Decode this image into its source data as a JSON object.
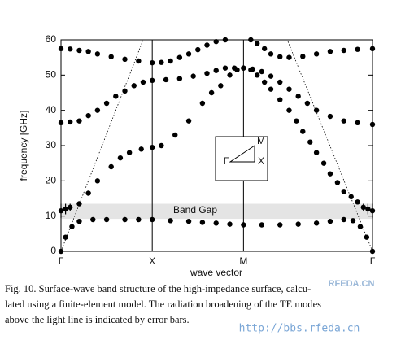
{
  "chart_data": {
    "type": "scatter",
    "ylabel": "frequency [GHz]",
    "xlabel": "wave vector",
    "xlim": [
      0,
      3.414
    ],
    "ylim": [
      0,
      60
    ],
    "xticks": [
      {
        "value": 0,
        "label": "Γ"
      },
      {
        "value": 1,
        "label": "X"
      },
      {
        "value": 2,
        "label": "M"
      },
      {
        "value": 3.414,
        "label": "Γ"
      }
    ],
    "yticks": [
      0,
      10,
      20,
      30,
      40,
      50,
      60
    ],
    "color": "#000000",
    "series": [
      {
        "x": [
          0,
          0.05,
          0.12,
          0.2,
          0.35,
          0.5,
          0.7,
          0.85,
          1.0,
          1.2,
          1.4,
          1.55,
          1.7,
          1.85,
          2.0,
          2.2,
          2.4,
          2.6,
          2.8,
          2.95,
          3.1,
          3.2,
          3.28,
          3.35,
          3.414
        ],
        "values": [
          0,
          4,
          7,
          8.5,
          9,
          9,
          9,
          9,
          9,
          8.7,
          8.5,
          8.2,
          8,
          7.7,
          7.5,
          7.5,
          7.5,
          7.7,
          8,
          8.5,
          9,
          8.7,
          7,
          4,
          0
        ]
      },
      {
        "x": [
          0,
          0.05,
          0.1,
          0.2,
          0.3,
          0.4,
          0.55,
          0.65,
          0.75,
          0.88,
          1.0,
          1.1,
          1.25,
          1.4,
          1.55,
          1.65,
          1.75,
          1.85,
          1.93,
          2.0
        ],
        "values": [
          11.5,
          12,
          12.5,
          13.5,
          16.5,
          20,
          24,
          26.5,
          28,
          29,
          29.5,
          30,
          33,
          37,
          42,
          45,
          47,
          50,
          51.5,
          52
        ],
        "errors": [
          2,
          1.5,
          1,
          null,
          null,
          null,
          null,
          null,
          null,
          null,
          null,
          null,
          null,
          null,
          null,
          null,
          null,
          null,
          null,
          null
        ]
      },
      {
        "x": [
          0,
          0.1,
          0.2,
          0.3,
          0.4,
          0.5,
          0.6,
          0.7,
          0.8,
          0.9,
          1.0,
          1.15,
          1.3,
          1.45,
          1.6,
          1.7,
          1.8,
          1.9
        ],
        "values": [
          36.5,
          36.7,
          37,
          38.5,
          40,
          42,
          44,
          45.5,
          47,
          48,
          48.5,
          48.7,
          49,
          49.7,
          50.5,
          51.3,
          52,
          52
        ]
      },
      {
        "x": [
          2.0,
          2.08,
          2.15,
          2.23,
          2.3,
          2.4,
          2.5,
          2.58,
          2.65,
          2.73,
          2.8,
          2.88,
          2.95,
          3.03,
          3.1,
          3.18,
          3.25,
          3.314,
          3.364,
          3.414
        ],
        "values": [
          52,
          51.5,
          50,
          48,
          46,
          43,
          40,
          37,
          34,
          31,
          28,
          25,
          22,
          19.5,
          17,
          15.5,
          14,
          12.5,
          12,
          11.5
        ],
        "errors": [
          null,
          null,
          null,
          null,
          null,
          null,
          null,
          null,
          null,
          null,
          null,
          null,
          null,
          null,
          null,
          null,
          null,
          1,
          1.5,
          2
        ]
      },
      {
        "x": [
          2.1,
          2.2,
          2.3,
          2.4,
          2.5,
          2.6,
          2.7,
          2.8,
          2.95,
          3.1,
          3.25,
          3.414
        ],
        "values": [
          51.7,
          51,
          49.7,
          48,
          46,
          44,
          42,
          40,
          38.3,
          37,
          36.5,
          36
        ]
      },
      {
        "x": [
          0,
          0.1,
          0.2,
          0.3,
          0.4,
          0.55,
          0.7,
          0.85,
          1.0,
          1.1,
          1.2,
          1.3,
          1.4,
          1.5,
          1.6,
          1.7,
          1.8
        ],
        "values": [
          57.5,
          57.4,
          57,
          56.7,
          56,
          55.2,
          54.5,
          54,
          53.5,
          53.6,
          54,
          55,
          56,
          57.2,
          58.5,
          59.5,
          60
        ]
      },
      {
        "x": [
          2.08,
          2.15,
          2.23,
          2.3,
          2.4,
          2.5,
          2.65,
          2.8,
          2.95,
          3.1,
          3.25,
          3.414
        ],
        "values": [
          60,
          59,
          57.5,
          56,
          55.2,
          55,
          55.3,
          56,
          56.7,
          57,
          57.3,
          57.5
        ]
      }
    ],
    "light_lines": [
      {
        "x": [
          0,
          0.9
        ],
        "values": [
          0,
          60
        ]
      },
      {
        "x": [
          3.414,
          2.48
        ],
        "values": [
          0,
          60
        ]
      }
    ],
    "band_gap": {
      "label": "Band Gap",
      "range": [
        9.2,
        13.5
      ]
    }
  },
  "inset": {
    "gamma": "Γ",
    "m": "M",
    "x": "X"
  },
  "caption": {
    "lines": [
      "Fig. 10.   Surface-wave band structure of the high-impedance surface, calcu-",
      "lated using a finite-element model. The radiation broadening of the TE modes",
      "above the light line is indicated by error bars."
    ]
  },
  "watermark": {
    "logo": "RFEDA.CN",
    "url": "http://bbs.rfeda.cn"
  }
}
